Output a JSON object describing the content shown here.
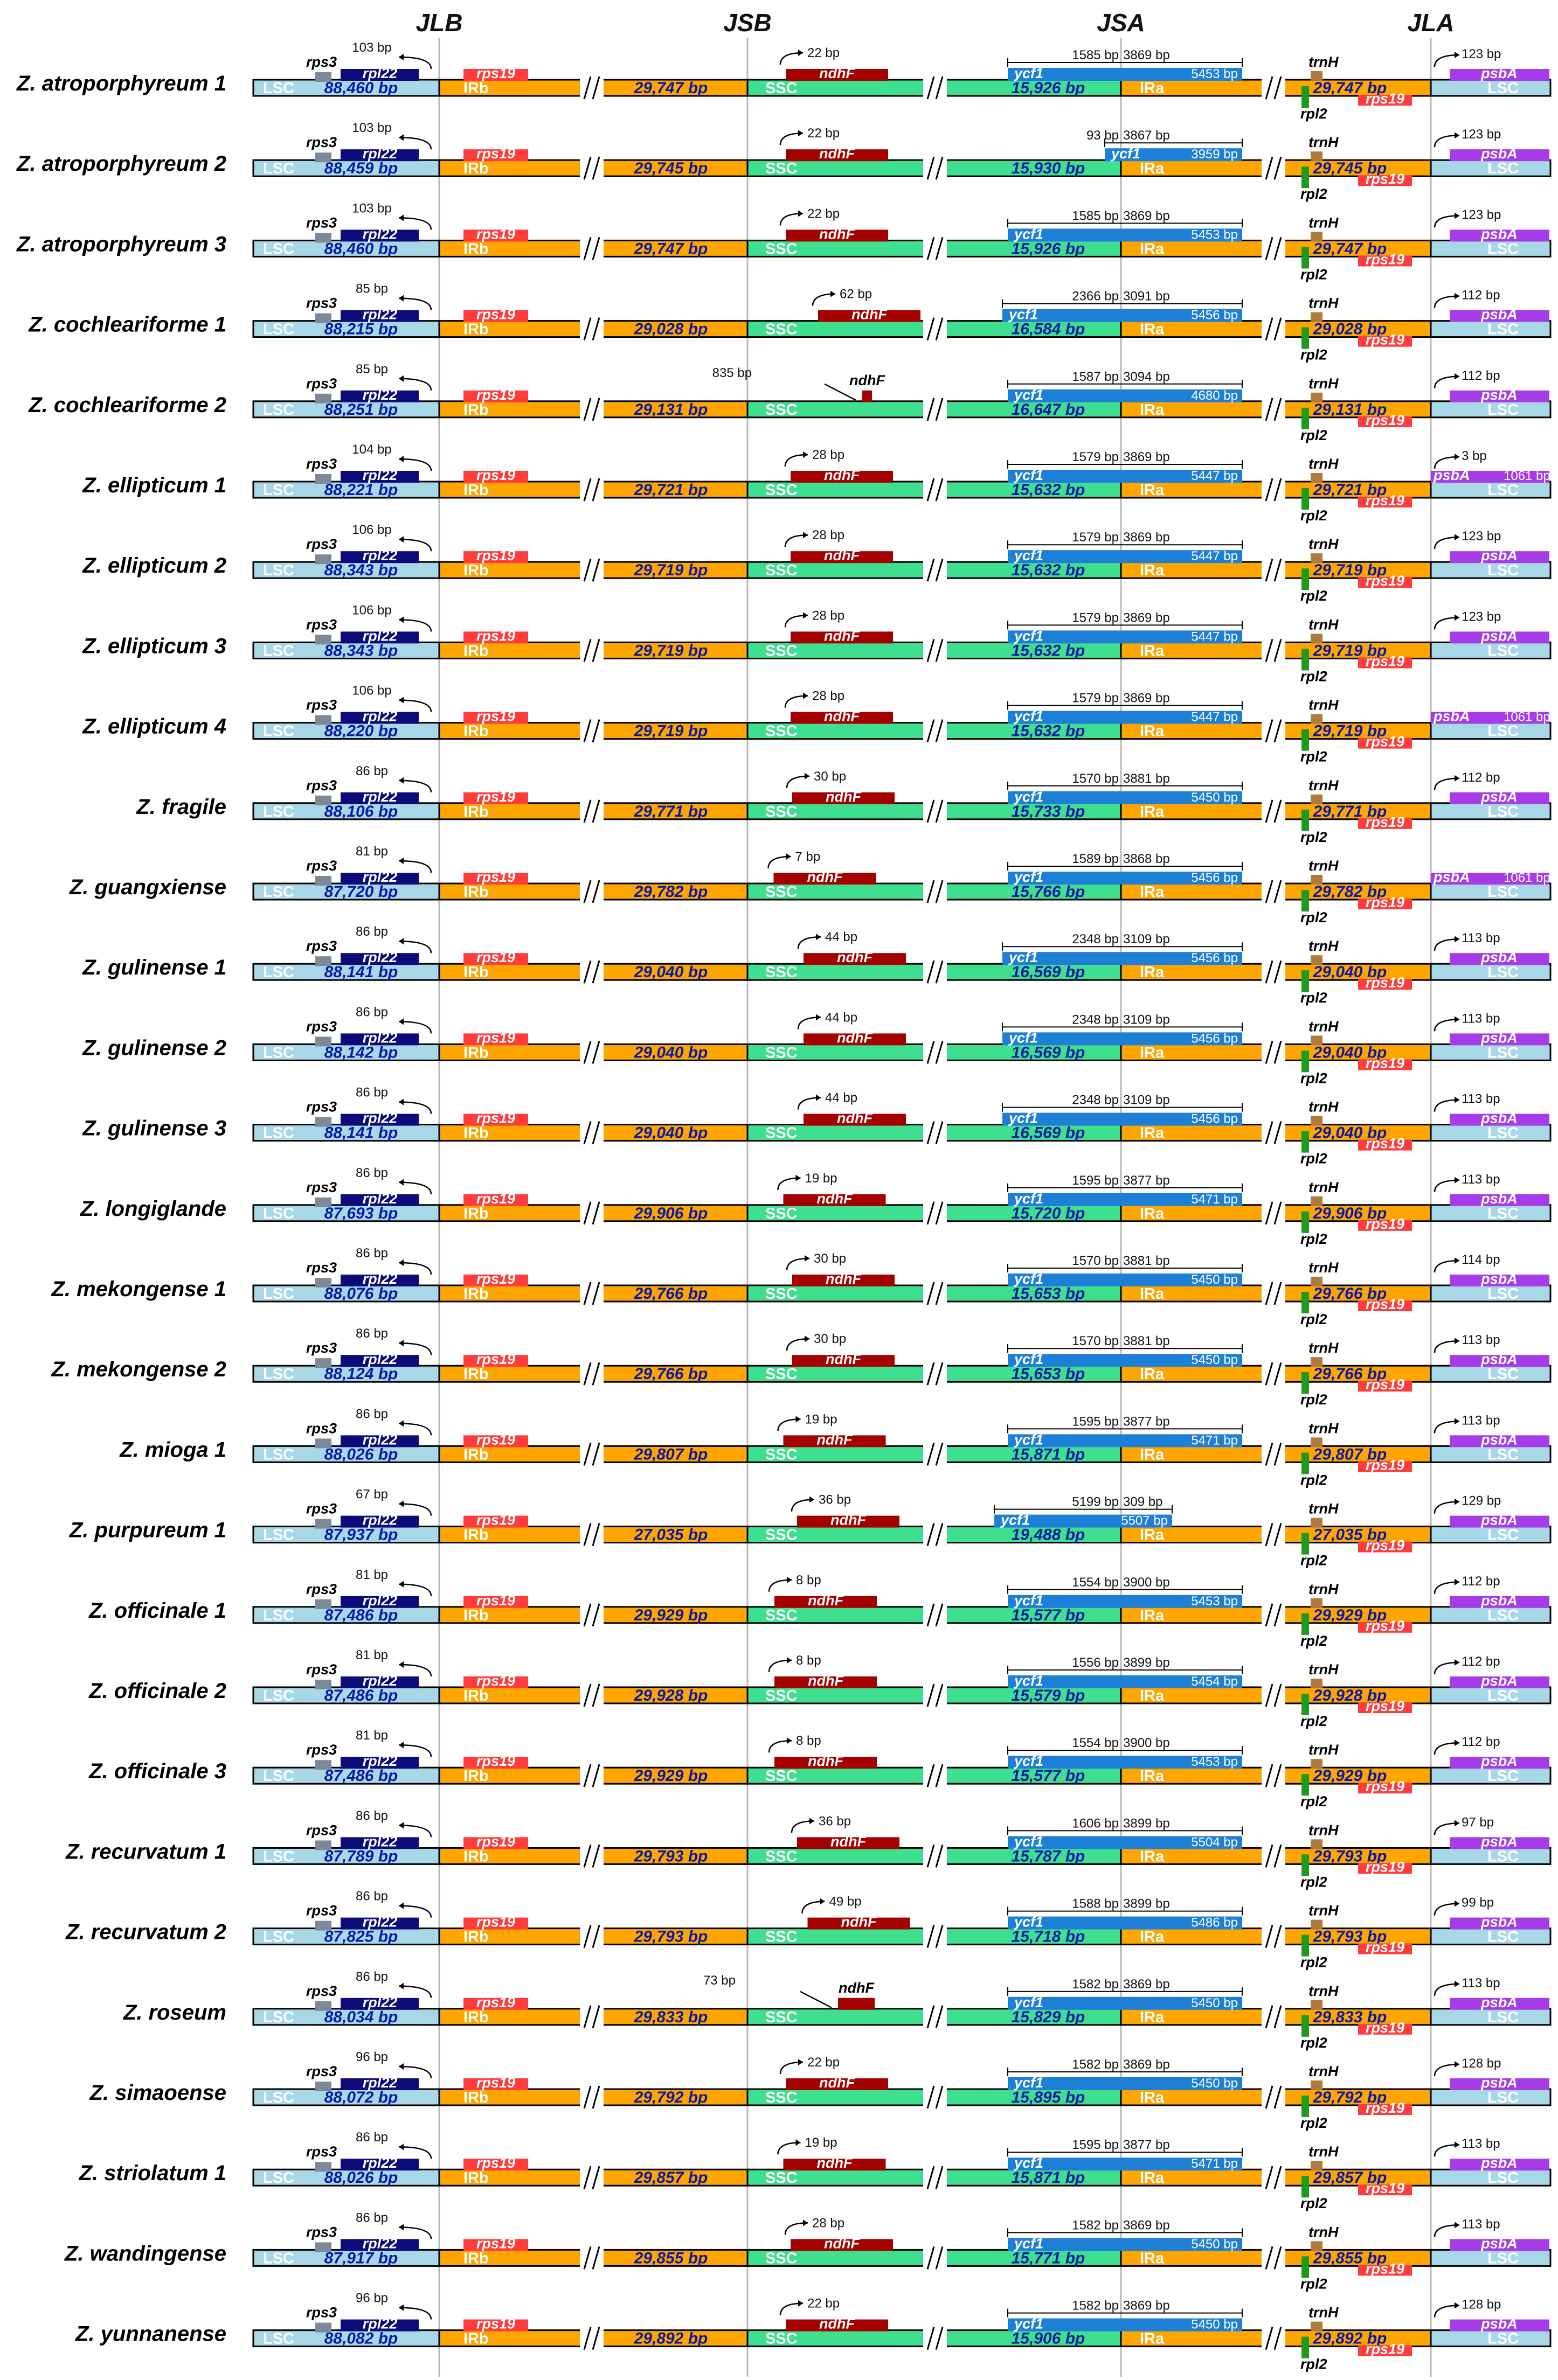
{
  "junction_labels": [
    "JLB",
    "JSB",
    "JSA",
    "JLA"
  ],
  "legend": {
    "region_labels": {
      "lsc": "LSC",
      "irb": "IRb",
      "ssc": "SSC",
      "ira": "IRa"
    },
    "genes": {
      "rps3": "rps3",
      "rpl22": "rpl22",
      "rps19": "rps19",
      "ndhF": "ndhF",
      "ycf1": "ycf1",
      "trnH": "trnH",
      "rpl2": "rpl2",
      "psbA": "psbA"
    }
  },
  "colors": {
    "lsc": "#a8d8e8",
    "ir": "#ffa500",
    "ssc": "#3ee08f",
    "rpl22": "#0b0b7a",
    "rps3": "#7a8a99",
    "rps19": "#ff3b3b",
    "ndhF": "#a50000",
    "ycf1": "#1e7fd6",
    "trnH": "#b07a3c",
    "rpl2": "#1f9a1f",
    "psbA": "#a63ce8",
    "len_text": "#0a1aa8"
  },
  "rows": [
    {
      "name": "Z. atroporphyreum 1",
      "lsc": "88,460 bp",
      "ir": "29,747 bp",
      "ssc": "15,926 bp",
      "jlb": "103 bp",
      "jsb": "22 bp",
      "ycf1_ssc": "1585 bp",
      "ycf1_ir": "3869 bp",
      "ira_len": "5453 bp",
      "jla": "123 bp",
      "psbA_len": ""
    },
    {
      "name": "Z. atroporphyreum 2",
      "lsc": "88,459 bp",
      "ir": "29,745 bp",
      "ssc": "15,930 bp",
      "jlb": "103 bp",
      "jsb": "22 bp",
      "ycf1_ssc": "93 bp",
      "ycf1_ir": "3867 bp",
      "ira_len": "3959 bp",
      "jla": "123 bp",
      "psbA_len": ""
    },
    {
      "name": "Z. atroporphyreum 3",
      "lsc": "88,460 bp",
      "ir": "29,747 bp",
      "ssc": "15,926 bp",
      "jlb": "103 bp",
      "jsb": "22 bp",
      "ycf1_ssc": "1585 bp",
      "ycf1_ir": "3869 bp",
      "ira_len": "5453 bp",
      "jla": "123 bp",
      "psbA_len": ""
    },
    {
      "name": "Z. cochleariforme 1",
      "lsc": "88,215 bp",
      "ir": "29,028 bp",
      "ssc": "16,584 bp",
      "jlb": "85 bp",
      "jsb": "62 bp",
      "ycf1_ssc": "2366 bp",
      "ycf1_ir": "3091 bp",
      "ira_len": "5456 bp",
      "jla": "112 bp",
      "psbA_len": ""
    },
    {
      "name": "Z. cochleariforme 2",
      "lsc": "88,251 bp",
      "ir": "29,131 bp",
      "ssc": "16,647 bp",
      "jlb": "85 bp",
      "jsb": "835 bp",
      "ycf1_ssc": "1587 bp",
      "ycf1_ir": "3094 bp",
      "ira_len": "4680 bp",
      "jla": "112 bp",
      "psbA_len": ""
    },
    {
      "name": "Z. ellipticum 1",
      "lsc": "88,221 bp",
      "ir": "29,721 bp",
      "ssc": "15,632 bp",
      "jlb": "104 bp",
      "jsb": "28 bp",
      "ycf1_ssc": "1579 bp",
      "ycf1_ir": "3869 bp",
      "ira_len": "5447 bp",
      "jla": "3 bp",
      "psbA_len": "1061 bp"
    },
    {
      "name": "Z. ellipticum 2",
      "lsc": "88,343 bp",
      "ir": "29,719 bp",
      "ssc": "15,632 bp",
      "jlb": "106 bp",
      "jsb": "28 bp",
      "ycf1_ssc": "1579 bp",
      "ycf1_ir": "3869 bp",
      "ira_len": "5447 bp",
      "jla": "123 bp",
      "psbA_len": ""
    },
    {
      "name": "Z. ellipticum 3",
      "lsc": "88,343 bp",
      "ir": "29,719 bp",
      "ssc": "15,632 bp",
      "jlb": "106 bp",
      "jsb": "28 bp",
      "ycf1_ssc": "1579 bp",
      "ycf1_ir": "3869 bp",
      "ira_len": "5447 bp",
      "jla": "123 bp",
      "psbA_len": ""
    },
    {
      "name": "Z. ellipticum 4",
      "lsc": "88,220 bp",
      "ir": "29,719 bp",
      "ssc": "15,632 bp",
      "jlb": "106 bp",
      "jsb": "28 bp",
      "ycf1_ssc": "1579 bp",
      "ycf1_ir": "3869 bp",
      "ira_len": "5447 bp",
      "jla": "",
      "psbA_len": "1061 bp"
    },
    {
      "name": "Z. fragile",
      "lsc": "88,106 bp",
      "ir": "29,771 bp",
      "ssc": "15,733 bp",
      "jlb": "86 bp",
      "jsb": "30 bp",
      "ycf1_ssc": "1570 bp",
      "ycf1_ir": "3881 bp",
      "ira_len": "5450 bp",
      "jla": "112 bp",
      "psbA_len": ""
    },
    {
      "name": "Z. guangxiense",
      "lsc": "87,720 bp",
      "ir": "29,782 bp",
      "ssc": "15,766 bp",
      "jlb": "81 bp",
      "jsb": "7 bp",
      "ycf1_ssc": "1589 bp",
      "ycf1_ir": "3868 bp",
      "ira_len": "5456 bp",
      "jla": "",
      "psbA_len": "1061 bp"
    },
    {
      "name": "Z. gulinense 1",
      "lsc": "88,141 bp",
      "ir": "29,040 bp",
      "ssc": "16,569 bp",
      "jlb": "86 bp",
      "jsb": "44 bp",
      "ycf1_ssc": "2348 bp",
      "ycf1_ir": "3109 bp",
      "ira_len": "5456 bp",
      "jla": "113 bp",
      "psbA_len": ""
    },
    {
      "name": "Z. gulinense 2",
      "lsc": "88,142 bp",
      "ir": "29,040 bp",
      "ssc": "16,569 bp",
      "jlb": "86 bp",
      "jsb": "44 bp",
      "ycf1_ssc": "2348 bp",
      "ycf1_ir": "3109 bp",
      "ira_len": "5456 bp",
      "jla": "113 bp",
      "psbA_len": ""
    },
    {
      "name": "Z. gulinense 3",
      "lsc": "88,141 bp",
      "ir": "29,040 bp",
      "ssc": "16,569 bp",
      "jlb": "86 bp",
      "jsb": "44 bp",
      "ycf1_ssc": "2348 bp",
      "ycf1_ir": "3109 bp",
      "ira_len": "5456 bp",
      "jla": "113 bp",
      "psbA_len": ""
    },
    {
      "name": "Z. longiglande",
      "lsc": "87,693 bp",
      "ir": "29,906 bp",
      "ssc": "15,720 bp",
      "jlb": "86 bp",
      "jsb": "19 bp",
      "ycf1_ssc": "1595 bp",
      "ycf1_ir": "3877 bp",
      "ira_len": "5471 bp",
      "jla": "113 bp",
      "psbA_len": ""
    },
    {
      "name": "Z. mekongense 1",
      "lsc": "88,076 bp",
      "ir": "29,766 bp",
      "ssc": "15,653 bp",
      "jlb": "86 bp",
      "jsb": "30 bp",
      "ycf1_ssc": "1570 bp",
      "ycf1_ir": "3881 bp",
      "ira_len": "5450 bp",
      "jla": "114 bp",
      "psbA_len": ""
    },
    {
      "name": "Z. mekongense 2",
      "lsc": "88,124 bp",
      "ir": "29,766 bp",
      "ssc": "15,653 bp",
      "jlb": "86 bp",
      "jsb": "30 bp",
      "ycf1_ssc": "1570 bp",
      "ycf1_ir": "3881 bp",
      "ira_len": "5450 bp",
      "jla": "113 bp",
      "psbA_len": ""
    },
    {
      "name": "Z. mioga 1",
      "lsc": "88,026 bp",
      "ir": "29,807 bp",
      "ssc": "15,871 bp",
      "jlb": "86 bp",
      "jsb": "19 bp",
      "ycf1_ssc": "1595 bp",
      "ycf1_ir": "3877 bp",
      "ira_len": "5471 bp",
      "jla": "113 bp",
      "psbA_len": ""
    },
    {
      "name": "Z. purpureum 1",
      "lsc": "87,937 bp",
      "ir": "27,035 bp",
      "ssc": "19,488 bp",
      "jlb": "67 bp",
      "jsb": "36 bp",
      "ycf1_ssc": "5199 bp",
      "ycf1_ir": "309 bp",
      "ira_len": "5507 bp",
      "jla": "129 bp",
      "psbA_len": ""
    },
    {
      "name": "Z. officinale 1",
      "lsc": "87,486 bp",
      "ir": "29,929 bp",
      "ssc": "15,577 bp",
      "jlb": "81 bp",
      "jsb": "8 bp",
      "ycf1_ssc": "1554 bp",
      "ycf1_ir": "3900 bp",
      "ira_len": "5453 bp",
      "jla": "112 bp",
      "psbA_len": ""
    },
    {
      "name": "Z. officinale 2",
      "lsc": "87,486 bp",
      "ir": "29,928 bp",
      "ssc": "15,579 bp",
      "jlb": "81 bp",
      "jsb": "8 bp",
      "ycf1_ssc": "1556 bp",
      "ycf1_ir": "3899 bp",
      "ira_len": "5454 bp",
      "jla": "112 bp",
      "psbA_len": ""
    },
    {
      "name": "Z. officinale 3",
      "lsc": "87,486 bp",
      "ir": "29,929 bp",
      "ssc": "15,577 bp",
      "jlb": "81 bp",
      "jsb": "8 bp",
      "ycf1_ssc": "1554 bp",
      "ycf1_ir": "3900 bp",
      "ira_len": "5453 bp",
      "jla": "112 bp",
      "psbA_len": ""
    },
    {
      "name": "Z. recurvatum 1",
      "lsc": "87,789 bp",
      "ir": "29,793 bp",
      "ssc": "15,787 bp",
      "jlb": "86 bp",
      "jsb": "36 bp",
      "ycf1_ssc": "1606 bp",
      "ycf1_ir": "3899 bp",
      "ira_len": "5504 bp",
      "jla": "97 bp",
      "psbA_len": ""
    },
    {
      "name": "Z. recurvatum 2",
      "lsc": "87,825 bp",
      "ir": "29,793 bp",
      "ssc": "15,718 bp",
      "jlb": "86 bp",
      "jsb": "49 bp",
      "ycf1_ssc": "1588 bp",
      "ycf1_ir": "3899 bp",
      "ira_len": "5486 bp",
      "jla": "99 bp",
      "psbA_len": ""
    },
    {
      "name": "Z. roseum",
      "lsc": "88,034 bp",
      "ir": "29,833 bp",
      "ssc": "15,829 bp",
      "jlb": "86 bp",
      "jsb": "73 bp",
      "ycf1_ssc": "1582 bp",
      "ycf1_ir": "3869 bp",
      "ira_len": "5450 bp",
      "jla": "113 bp",
      "psbA_len": ""
    },
    {
      "name": "Z. simaoense",
      "lsc": "88,072 bp",
      "ir": "29,792 bp",
      "ssc": "15,895 bp",
      "jlb": "96 bp",
      "jsb": "22 bp",
      "ycf1_ssc": "1582 bp",
      "ycf1_ir": "3869 bp",
      "ira_len": "5450 bp",
      "jla": "128 bp",
      "psbA_len": ""
    },
    {
      "name": "Z. striolatum 1",
      "lsc": "88,026 bp",
      "ir": "29,857 bp",
      "ssc": "15,871 bp",
      "jlb": "86 bp",
      "jsb": "19 bp",
      "ycf1_ssc": "1595 bp",
      "ycf1_ir": "3877 bp",
      "ira_len": "5471 bp",
      "jla": "113 bp",
      "psbA_len": ""
    },
    {
      "name": "Z. wandingense",
      "lsc": "87,917 bp",
      "ir": "29,855 bp",
      "ssc": "15,771 bp",
      "jlb": "86 bp",
      "jsb": "28 bp",
      "ycf1_ssc": "1582 bp",
      "ycf1_ir": "3869 bp",
      "ira_len": "5450 bp",
      "jla": "113 bp",
      "psbA_len": ""
    },
    {
      "name": "Z. yunnanense",
      "lsc": "88,082 bp",
      "ir": "29,892 bp",
      "ssc": "15,906 bp",
      "jlb": "96 bp",
      "jsb": "22 bp",
      "ycf1_ssc": "1582 bp",
      "ycf1_ir": "3869 bp",
      "ira_len": "5450 bp",
      "jla": "128 bp",
      "psbA_len": ""
    }
  ]
}
